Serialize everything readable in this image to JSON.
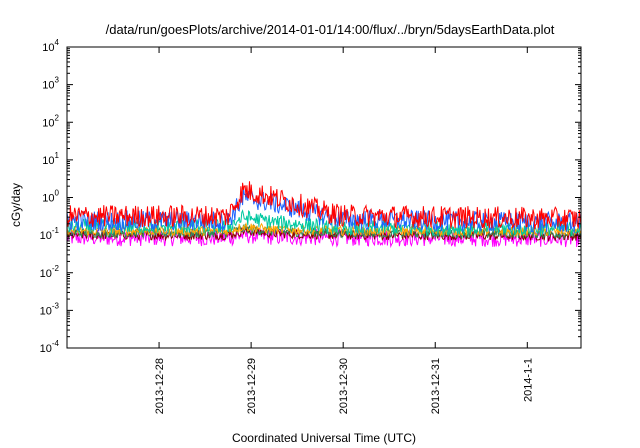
{
  "chart_data": {
    "type": "line",
    "title": "/data/run/goesPlots/archive/2014-01-01/14:00/flux/../bryn/5daysEarthData.plot",
    "xlabel": "Coordinated Universal Time (UTC)",
    "ylabel": "cGy/day",
    "x_range": [
      "2013-12-27T00:00",
      "2014-01-01T14:00"
    ],
    "x_ticks": [
      {
        "label": "2013-12-28",
        "date": "2013-12-28T00:00"
      },
      {
        "label": "2013-12-29",
        "date": "2013-12-29T00:00"
      },
      {
        "label": "2013-12-30",
        "date": "2013-12-30T00:00"
      },
      {
        "label": "2013-12-31",
        "date": "2013-12-31T00:00"
      },
      {
        "label": "2014-1-1",
        "date": "2014-01-01T00:00"
      }
    ],
    "y_scale": "log",
    "ylim": [
      0.0001,
      10000
    ],
    "y_ticks": [
      {
        "base": "10",
        "exp": "-4",
        "value": 0.0001
      },
      {
        "base": "10",
        "exp": "-3",
        "value": 0.001
      },
      {
        "base": "10",
        "exp": "-2",
        "value": 0.01
      },
      {
        "base": "10",
        "exp": "-1",
        "value": 0.1
      },
      {
        "base": "10",
        "exp": "0",
        "value": 1
      },
      {
        "base": "10",
        "exp": "1",
        "value": 10
      },
      {
        "base": "10",
        "exp": "2",
        "value": 100
      },
      {
        "base": "10",
        "exp": "3",
        "value": 1000
      },
      {
        "base": "10",
        "exp": "4",
        "value": 10000
      }
    ],
    "grid": false,
    "legend": "none",
    "series": [
      {
        "color": "#ff00ff",
        "noise": 0.45,
        "points": [
          [
            "2013-12-27T00:00",
            0.085
          ],
          [
            "2013-12-28T18:00",
            0.085
          ],
          [
            "2013-12-28T22:00",
            0.1
          ],
          [
            "2013-12-29T06:00",
            0.09
          ],
          [
            "2013-12-30T00:00",
            0.085
          ],
          [
            "2014-01-01T14:00",
            0.08
          ]
        ]
      },
      {
        "color": "#8b0000",
        "noise": 0.25,
        "points": [
          [
            "2013-12-27T00:00",
            0.1
          ],
          [
            "2013-12-28T18:00",
            0.1
          ],
          [
            "2013-12-28T22:00",
            0.13
          ],
          [
            "2013-12-29T06:00",
            0.11
          ],
          [
            "2013-12-30T00:00",
            0.1
          ],
          [
            "2014-01-01T14:00",
            0.095
          ]
        ]
      },
      {
        "color": "#2e8b57",
        "noise": 0.25,
        "points": [
          [
            "2013-12-27T00:00",
            0.115
          ],
          [
            "2013-12-28T18:00",
            0.115
          ],
          [
            "2013-12-28T22:00",
            0.15
          ],
          [
            "2013-12-29T06:00",
            0.125
          ],
          [
            "2013-12-30T00:00",
            0.115
          ],
          [
            "2014-01-01T14:00",
            0.11
          ]
        ]
      },
      {
        "color": "#ffa500",
        "noise": 0.25,
        "points": [
          [
            "2013-12-27T00:00",
            0.13
          ],
          [
            "2013-12-28T18:00",
            0.13
          ],
          [
            "2013-12-28T22:00",
            0.17
          ],
          [
            "2013-12-29T06:00",
            0.14
          ],
          [
            "2013-12-30T00:00",
            0.13
          ],
          [
            "2014-01-01T14:00",
            0.125
          ]
        ]
      },
      {
        "color": "#00c8a0",
        "noise": 0.4,
        "points": [
          [
            "2013-12-27T00:00",
            0.17
          ],
          [
            "2013-12-28T18:00",
            0.17
          ],
          [
            "2013-12-28T22:00",
            0.3
          ],
          [
            "2013-12-29T06:00",
            0.22
          ],
          [
            "2013-12-30T00:00",
            0.16
          ],
          [
            "2014-01-01T14:00",
            0.15
          ]
        ]
      },
      {
        "color": "#1e64ff",
        "noise": 0.55,
        "points": [
          [
            "2013-12-27T00:00",
            0.24
          ],
          [
            "2013-12-28T18:00",
            0.24
          ],
          [
            "2013-12-28T22:00",
            1.0
          ],
          [
            "2013-12-29T06:00",
            0.7
          ],
          [
            "2013-12-29T18:00",
            0.35
          ],
          [
            "2013-12-30T00:00",
            0.26
          ],
          [
            "2014-01-01T14:00",
            0.21
          ]
        ]
      },
      {
        "color": "#ff0000",
        "noise": 0.6,
        "points": [
          [
            "2013-12-27T00:00",
            0.32
          ],
          [
            "2013-12-28T18:00",
            0.32
          ],
          [
            "2013-12-28T22:00",
            1.6
          ],
          [
            "2013-12-29T06:00",
            1.0
          ],
          [
            "2013-12-29T18:00",
            0.45
          ],
          [
            "2013-12-30T00:00",
            0.33
          ],
          [
            "2014-01-01T14:00",
            0.27
          ]
        ]
      }
    ]
  }
}
